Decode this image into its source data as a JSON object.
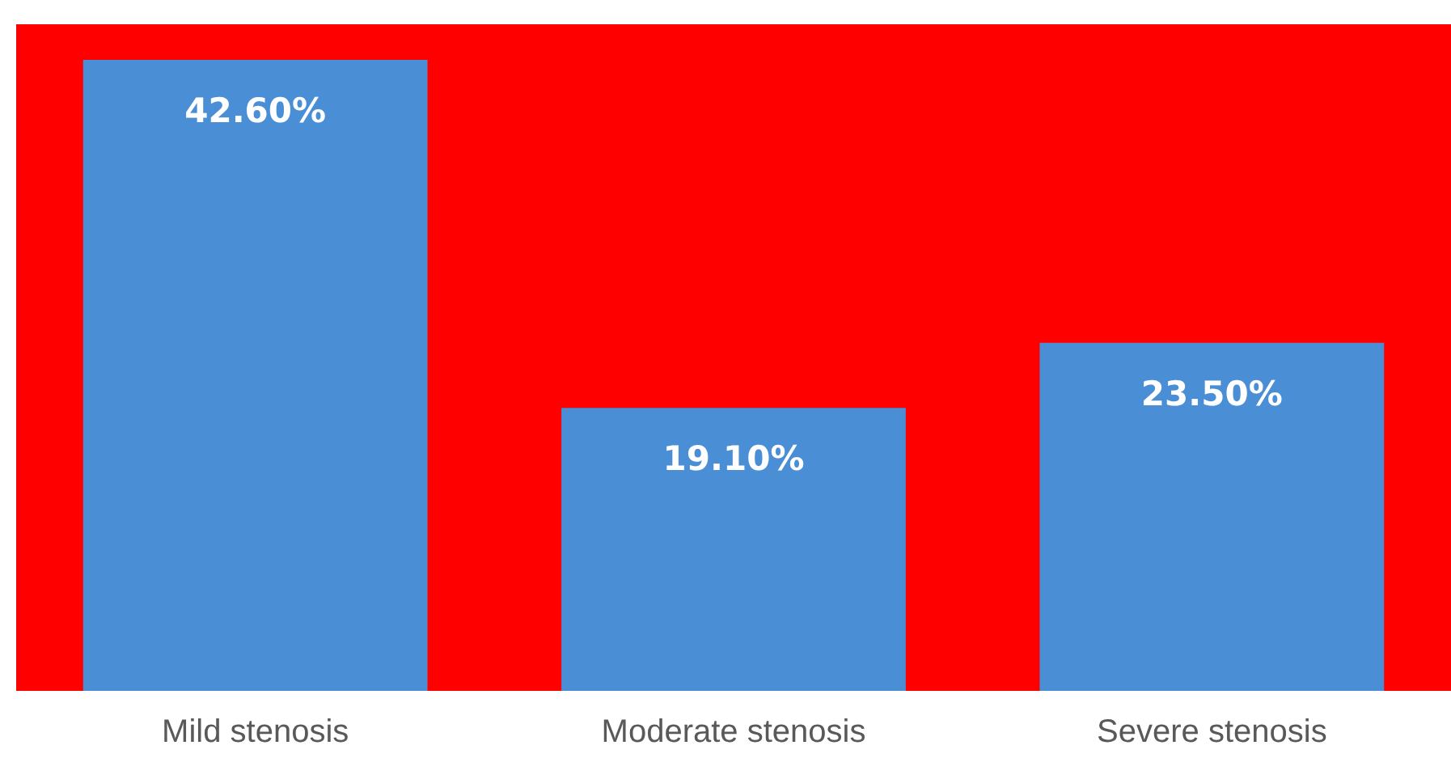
{
  "chart_data": {
    "type": "bar",
    "categories": [
      "Mild stenosis",
      "Moderate stenosis",
      "Severe stenosis"
    ],
    "values": [
      42.6,
      19.1,
      23.5
    ],
    "color": "#4a8fd6",
    "data_labels": true,
    "value_labels": [
      "42.60%",
      "19.10%",
      "23.50%"
    ],
    "grid": false,
    "legend": false
  }
}
